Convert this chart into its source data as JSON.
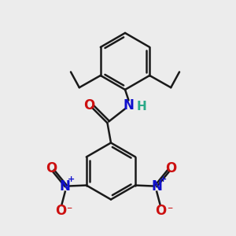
{
  "bg_color": "#ececec",
  "bond_color": "#1a1a1a",
  "bond_width": 1.8,
  "N_color": "#1010cc",
  "O_color": "#cc1010",
  "H_color": "#2aaa88",
  "figsize": [
    3.0,
    3.0
  ],
  "dpi": 100,
  "xlim": [
    -1.3,
    1.3
  ],
  "ylim": [
    -1.7,
    1.6
  ]
}
